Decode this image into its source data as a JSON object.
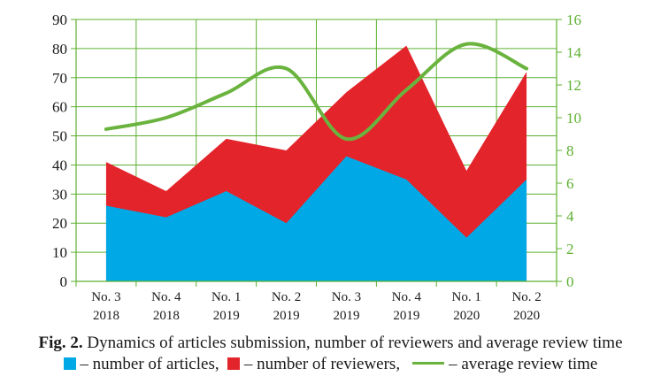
{
  "chart_data": {
    "type": "area",
    "categories": [
      [
        "No. 3",
        "2018"
      ],
      [
        "No. 4",
        "2018"
      ],
      [
        "No. 1",
        "2019"
      ],
      [
        "No. 2",
        "2019"
      ],
      [
        "No. 3",
        "2019"
      ],
      [
        "No. 4",
        "2019"
      ],
      [
        "No. 1",
        "2020"
      ],
      [
        "No. 2",
        "2020"
      ]
    ],
    "series": [
      {
        "name": "number of articles",
        "axis": "left",
        "render": "area",
        "color": "#00a9e6",
        "values": [
          26,
          22,
          31,
          20,
          43,
          35,
          15,
          35
        ]
      },
      {
        "name": "number of reviewers",
        "axis": "left",
        "render": "area",
        "color": "#e3242b",
        "values": [
          41,
          31,
          49,
          45,
          65,
          81,
          38,
          72
        ]
      },
      {
        "name": "average review time",
        "axis": "right",
        "render": "line",
        "color": "#6ab33e",
        "values": [
          9.3,
          10.0,
          11.5,
          13.0,
          8.7,
          11.7,
          14.5,
          13.0
        ]
      }
    ],
    "y_left": {
      "ylim": [
        0,
        90
      ],
      "ticks": [
        "0",
        "10",
        "20",
        "30",
        "40",
        "50",
        "60",
        "70",
        "80",
        "90"
      ]
    },
    "y_right": {
      "ylim": [
        0,
        16
      ],
      "ticks": [
        "0",
        "2",
        "4",
        "6",
        "8",
        "10",
        "12",
        "14",
        "16"
      ],
      "color": "#6ab33e"
    },
    "grid": true,
    "grid_color": "#5db030"
  },
  "caption": {
    "fig_label": "Fig. 2.",
    "text": " Dynamics of articles submission, number of reviewers and average review time",
    "legend": [
      {
        "label": " – number of articles,",
        "color": "#00a9e6"
      },
      {
        "label": " – number of reviewers,",
        "color": "#e3242b"
      },
      {
        "label": " – average review time",
        "color": "#6ab33e"
      }
    ]
  }
}
